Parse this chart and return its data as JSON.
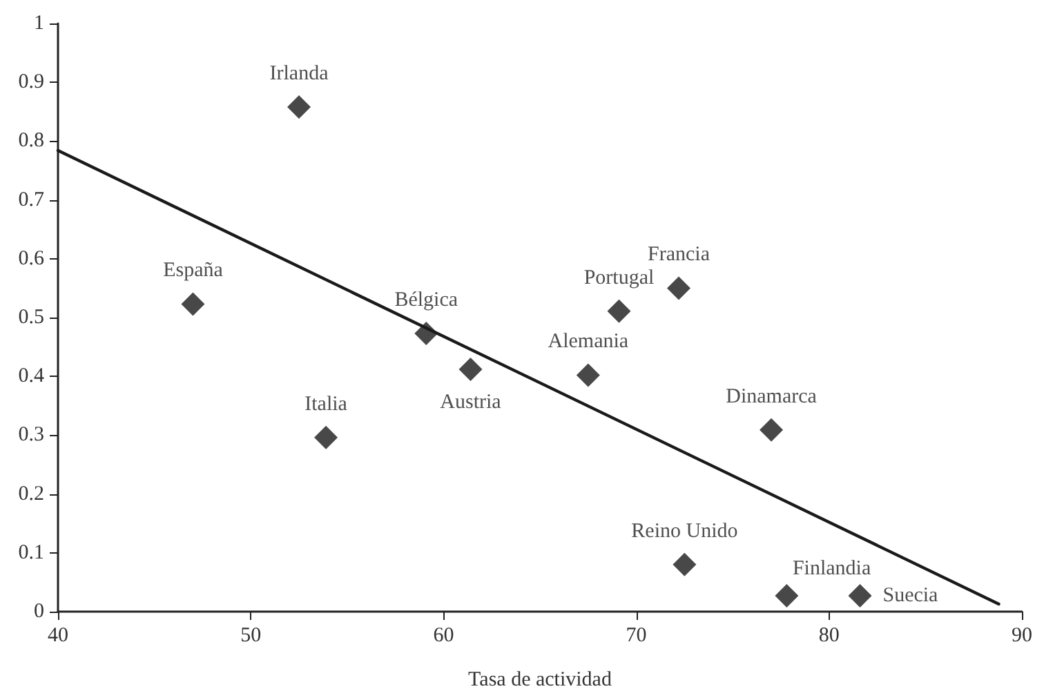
{
  "chart_data": {
    "type": "scatter",
    "xlabel": "Tasa de actividad",
    "series": [
      {
        "color": "#1a1a1a",
        "marker": "diamond",
        "x": [
          52.5,
          47.0,
          59.1,
          61.4,
          53.9,
          69.1,
          72.2,
          67.5,
          77.0,
          72.5,
          77.8,
          81.6
        ],
        "values": [
          0.858,
          0.523,
          0.473,
          0.412,
          0.296,
          0.511,
          0.55,
          0.402,
          0.309,
          0.08,
          0.027,
          0.027
        ]
      },
      {
        "type": "line",
        "color": "#1a1a1a",
        "marker": "none",
        "line_style": "solid",
        "x": [
          40,
          88.8
        ],
        "values": [
          0.784,
          0.013
        ]
      }
    ],
    "annotations": [
      {
        "text": "Irlanda",
        "x": 52.5,
        "y": 0.858
      },
      {
        "text": "España",
        "x": 47.0,
        "y": 0.523
      },
      {
        "text": "Bélgica",
        "x": 59.1,
        "y": 0.473
      },
      {
        "text": "Austria",
        "x": 61.4,
        "y": 0.412
      },
      {
        "text": "Italia",
        "x": 53.9,
        "y": 0.296
      },
      {
        "text": "Portugal",
        "x": 69.1,
        "y": 0.511
      },
      {
        "text": "Francia",
        "x": 72.2,
        "y": 0.55
      },
      {
        "text": "Alemania",
        "x": 67.5,
        "y": 0.402
      },
      {
        "text": "Dinamarca",
        "x": 77.0,
        "y": 0.309
      },
      {
        "text": "Reino Unido",
        "x": 72.5,
        "y": 0.08
      },
      {
        "text": "Finlandia",
        "x": 77.8,
        "y": 0.027
      },
      {
        "text": "Suecia",
        "x": 81.6,
        "y": 0.027
      }
    ],
    "xlim": [
      40,
      90
    ],
    "xticks": [
      40,
      50,
      60,
      70,
      80,
      90
    ],
    "ylim": [
      0,
      1
    ],
    "yticks": [
      0,
      0.1,
      0.2,
      0.3,
      0.4,
      0.5,
      0.6,
      0.7,
      0.8,
      0.9,
      1
    ],
    "grid": false
  }
}
